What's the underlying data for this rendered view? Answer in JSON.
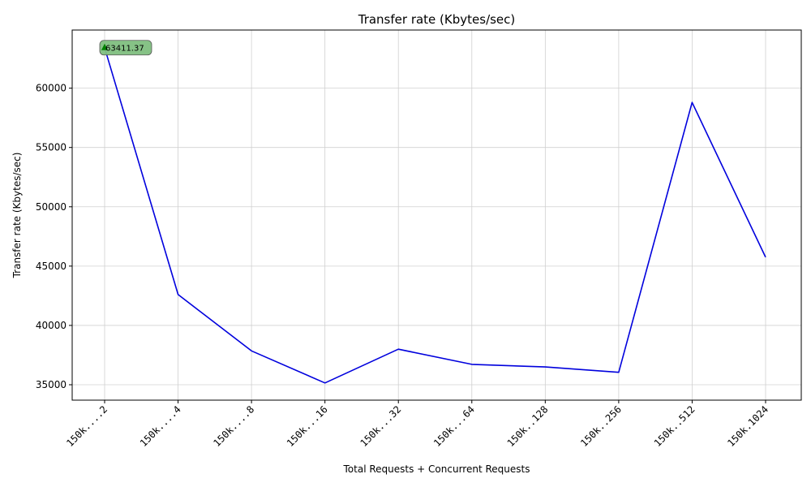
{
  "chart_data": {
    "type": "line",
    "title": "Transfer rate (Kbytes/sec)",
    "xlabel": "Total Requests + Concurrent Requests",
    "ylabel": "Transfer rate (Kbytes/sec)",
    "categories": [
      "150k....2",
      "150k....4",
      "150k....8",
      "150k...16",
      "150k...32",
      "150k...64",
      "150k..128",
      "150k..256",
      "150k..512",
      "150k.1024"
    ],
    "series": [
      {
        "values": [
          63411.37,
          42600,
          37850,
          35150,
          38000,
          36720,
          36500,
          36050,
          58800,
          45750
        ],
        "color": "#0000dd"
      }
    ],
    "ylim": [
      33700,
      64900
    ],
    "yticks": [
      35000,
      40000,
      45000,
      50000,
      55000,
      60000
    ],
    "grid": true,
    "annotation": {
      "category_index": 0,
      "text": "63411.37",
      "box_color": "#7fbf7f",
      "marker_color": "#008000"
    }
  }
}
